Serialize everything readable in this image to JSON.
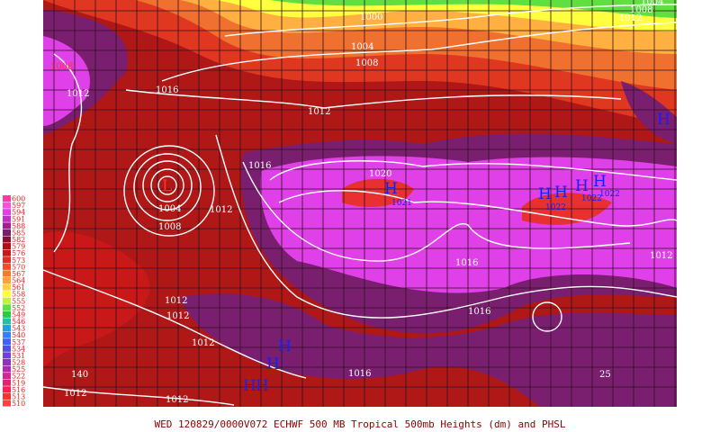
{
  "caption": "WED 120829/0000V072  ECHWF  500 MB Tropical 500mb Heights (dm) and PHSL",
  "legend": {
    "levels": [
      600,
      597,
      594,
      591,
      588,
      585,
      582,
      579,
      576,
      573,
      570,
      567,
      564,
      561,
      558,
      555,
      552,
      549,
      546,
      543,
      540,
      537,
      534,
      531,
      528,
      525,
      522,
      519,
      516,
      513,
      510
    ],
    "colors": [
      "#ff3aa0",
      "#ff4fd8",
      "#e040e8",
      "#c030c8",
      "#a02090",
      "#7a1e70",
      "#8a1030",
      "#b01010",
      "#c81818",
      "#e03020",
      "#f05028",
      "#f87830",
      "#ffa040",
      "#ffd040",
      "#ffff40",
      "#c0f040",
      "#60e040",
      "#30c840",
      "#20c0a0",
      "#20a0e0",
      "#3080ff",
      "#4060ff",
      "#5050e0",
      "#7040d0",
      "#9030c0",
      "#b028b0",
      "#d02890",
      "#e82070",
      "#ff2050",
      "#ff3030",
      "#ff4040"
    ]
  },
  "map_labels": [
    "1000",
    "1004",
    "1008",
    "1016",
    "1012",
    "1016",
    "1020",
    "H",
    "1021",
    "L",
    "1004",
    "1008",
    "1012",
    "H",
    "H",
    "1022",
    "H",
    "H",
    "1022",
    "1022",
    "H",
    "1016",
    "1016",
    "1012",
    "1012",
    "1012",
    "1012",
    "H",
    "H",
    "H",
    "H",
    "1016",
    "1012",
    "1012",
    "1008",
    "1012",
    "1004",
    "1008",
    "1012",
    "25",
    "140"
  ]
}
